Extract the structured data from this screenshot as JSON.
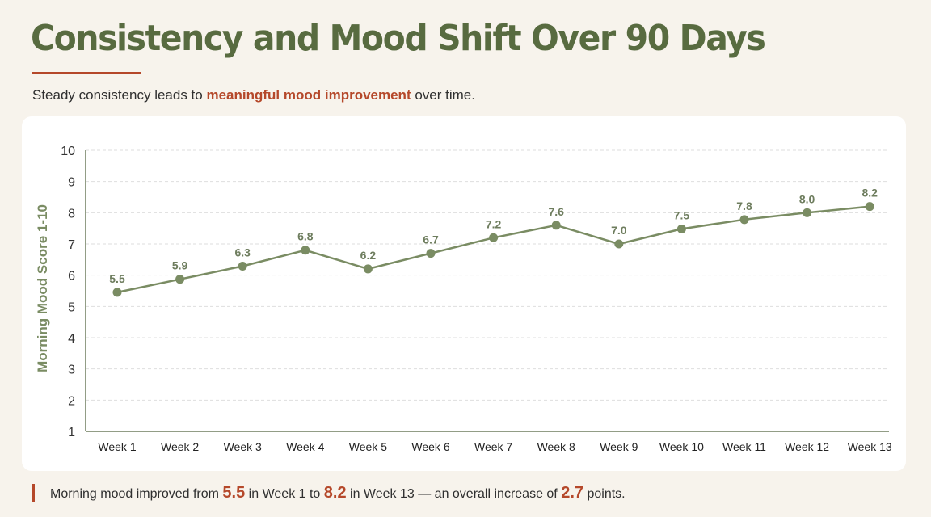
{
  "header": {
    "title": "Consistency and Mood Shift Over 90 Days",
    "subtitle_pre": "Steady consistency leads to ",
    "subtitle_highlight": "meaningful mood improvement",
    "subtitle_post": " over time."
  },
  "chart_data": {
    "type": "line",
    "ylabel": "Morning Mood Score 1-10",
    "xlabel": "",
    "ylim": [
      1,
      10
    ],
    "yticks": [
      "1",
      "2",
      "3",
      "4",
      "5",
      "6",
      "7",
      "8",
      "9",
      "10"
    ],
    "grid": true,
    "categories": [
      "Week 1",
      "Week 2",
      "Week 3",
      "Week 4",
      "Week 5",
      "Week 6",
      "Week 7",
      "Week 8",
      "Week 9",
      "Week 10",
      "Week 11",
      "Week 12",
      "Week 13"
    ],
    "values": [
      5.45,
      5.87,
      6.29,
      6.8,
      6.2,
      6.7,
      7.2,
      7.6,
      7.0,
      7.48,
      7.78,
      8.0,
      8.2
    ],
    "data_labels": [
      "5.5",
      "5.9",
      "6.3",
      "6.8",
      "6.2",
      "6.7",
      "7.2",
      "7.6",
      "7.0",
      "7.5",
      "7.8",
      "8.0",
      "8.2"
    ],
    "color": "#7a8c63"
  },
  "footer": {
    "t1": "Morning mood improved from ",
    "v1": "5.5",
    "t2": " in Week 1 to ",
    "v2": "8.2",
    "t3": " in Week 13 — an overall increase of ",
    "v3": "2.7",
    "t4": " points."
  },
  "colors": {
    "accent": "#b5482a",
    "title": "#586b40",
    "line": "#7a8c63"
  }
}
